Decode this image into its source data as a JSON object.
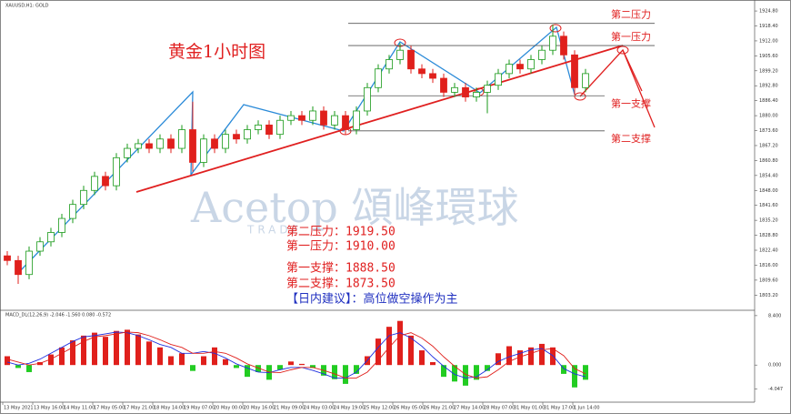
{
  "chart_data": [
    {
      "type": "candlestick",
      "label": "XAUUSD,H1: GOLD",
      "title": "黄金1小时图",
      "open": [
        1820,
        1818,
        1812,
        1822,
        1826,
        1830,
        1836,
        1842,
        1848,
        1854,
        1850,
        1862,
        1866,
        1868,
        1866,
        1870,
        1866,
        1874,
        1860,
        1870,
        1866,
        1872,
        1870,
        1874,
        1876,
        1872,
        1878,
        1880,
        1878,
        1882,
        1876,
        1880,
        1874,
        1882,
        1892,
        1900,
        1904,
        1908,
        1900,
        1898,
        1896,
        1890,
        1892,
        1888,
        1890,
        1893,
        1898,
        1902,
        1900,
        1904,
        1908,
        1914,
        1906,
        1892
      ],
      "high": [
        1822,
        1820,
        1824,
        1828,
        1832,
        1838,
        1844,
        1850,
        1856,
        1856,
        1864,
        1868,
        1870,
        1870,
        1872,
        1872,
        1876,
        1886,
        1872,
        1872,
        1874,
        1874,
        1876,
        1878,
        1878,
        1880,
        1882,
        1882,
        1884,
        1884,
        1882,
        1882,
        1884,
        1894,
        1902,
        1906,
        1911,
        1910,
        1902,
        1900,
        1898,
        1894,
        1894,
        1892,
        1895,
        1900,
        1904,
        1904,
        1906,
        1910,
        1919,
        1916,
        1908,
        1900
      ],
      "low": [
        1816,
        1808,
        1810,
        1820,
        1824,
        1828,
        1834,
        1840,
        1846,
        1848,
        1848,
        1860,
        1864,
        1864,
        1864,
        1864,
        1864,
        1856,
        1858,
        1864,
        1864,
        1868,
        1868,
        1872,
        1870,
        1870,
        1876,
        1876,
        1876,
        1874,
        1874,
        1872,
        1872,
        1880,
        1890,
        1898,
        1902,
        1898,
        1896,
        1894,
        1888,
        1888,
        1886,
        1886,
        1881,
        1891,
        1896,
        1898,
        1898,
        1902,
        1906,
        1904,
        1889,
        1890
      ],
      "close": [
        1818,
        1812,
        1822,
        1826,
        1830,
        1836,
        1842,
        1848,
        1854,
        1850,
        1862,
        1866,
        1868,
        1866,
        1870,
        1866,
        1874,
        1860,
        1870,
        1866,
        1872,
        1870,
        1874,
        1876,
        1872,
        1878,
        1880,
        1878,
        1882,
        1876,
        1880,
        1874,
        1882,
        1892,
        1900,
        1904,
        1908,
        1900,
        1898,
        1896,
        1890,
        1892,
        1888,
        1890,
        1893,
        1898,
        1902,
        1900,
        1904,
        1908,
        1914,
        1906,
        1892,
        1898
      ],
      "up_color": "#1a9a1a",
      "down_color": "#e0201c",
      "ylim": [
        1796.7,
        1929.5
      ],
      "yticks": [
        {
          "value": 1924.8,
          "label": "1924.80"
        },
        {
          "value": 1918.4,
          "label": "1918.40"
        },
        {
          "value": 1912,
          "label": "1912.00"
        },
        {
          "value": 1905.6,
          "label": "1905.60"
        },
        {
          "value": 1899.2,
          "label": "1899.20"
        },
        {
          "value": 1892.8,
          "label": "1892.80"
        },
        {
          "value": 1886.4,
          "label": "1886.40"
        },
        {
          "value": 1880,
          "label": "1880.00"
        },
        {
          "value": 1873.6,
          "label": "1873.60"
        },
        {
          "value": 1867.2,
          "label": "1867.20"
        },
        {
          "value": 1860.8,
          "label": "1860.80"
        },
        {
          "value": 1854.4,
          "label": "1854.40"
        },
        {
          "value": 1848,
          "label": "1848.00"
        },
        {
          "value": 1841.6,
          "label": "1841.60"
        },
        {
          "value": 1835.2,
          "label": "1835.20"
        },
        {
          "value": 1828.8,
          "label": "1828.80"
        },
        {
          "value": 1822.4,
          "label": "1822.40"
        },
        {
          "value": 1816,
          "label": "1816.00"
        },
        {
          "value": 1809.6,
          "label": "1809.60"
        },
        {
          "value": 1803.2,
          "label": "1803.20"
        }
      ],
      "levels": [
        {
          "name": "第二压力",
          "value": 1919.5
        },
        {
          "name": "第一压力",
          "value": 1910
        },
        {
          "name": "第一支撑",
          "value": 1888.5
        },
        {
          "name": "第二支撑",
          "value": 1873.5
        }
      ],
      "notes": [
        "第二压力：1919.50",
        "第一压力：1910.00",
        "第一支撑：1888.50",
        "第二支撑：1873.50",
        "【日内建议】：高位做空操作为主"
      ],
      "watermark": [
        "Acetop 頌峰環球",
        "TRADE"
      ]
    },
    {
      "type": "histogram",
      "label": "MACD_DL(12,26,9) -2.046 -1.560 0.080 -0.572",
      "values": [
        1.5,
        -0.5,
        -1.2,
        0.5,
        1.8,
        3.0,
        4.2,
        5.0,
        5.5,
        4.8,
        5.8,
        6.0,
        5.2,
        4.0,
        3.0,
        1.5,
        2.0,
        -1.0,
        1.5,
        3.0,
        1.0,
        -0.5,
        -2.0,
        -1.2,
        -2.5,
        -0.8,
        0.6,
        0.2,
        -0.5,
        -1.8,
        -2.4,
        -3.2,
        -1.5,
        1.5,
        4.5,
        6.5,
        7.5,
        5.0,
        2.5,
        0.5,
        -2.0,
        -2.8,
        -3.5,
        -2.5,
        -1.0,
        2.0,
        3.2,
        2.5,
        3.0,
        3.6,
        3.0,
        -1.5,
        -3.8,
        -2.5
      ],
      "lines": [
        {
          "color": "#2030e0",
          "values": [
            0.5,
            0,
            0.3,
            1,
            2,
            3,
            4,
            4.8,
            5.0,
            5.3,
            5.6,
            5.5,
            5,
            4.3,
            3.5,
            3,
            2,
            2,
            2.3,
            2,
            1.2,
            0.2,
            -0.5,
            -1.2,
            -1.3,
            -0.8,
            -0.4,
            -0.4,
            -0.9,
            -1.5,
            -2.2,
            -2.2,
            -1.2,
            0.8,
            3,
            5,
            5.5,
            4.6,
            3.2,
            1.4,
            -0.2,
            -1.6,
            -2.2,
            -2,
            -0.8,
            0.6,
            1.4,
            2,
            2.6,
            2.8,
            1.6,
            -0.6,
            -1.5,
            -2.0
          ]
        },
        {
          "color": "#e0201c",
          "values": [
            1,
            0.5,
            0,
            0.3,
            1,
            2,
            3,
            4,
            4.8,
            5.0,
            5.3,
            5.6,
            5.5,
            5,
            4.3,
            3.5,
            3,
            2,
            2,
            2.3,
            2,
            1.2,
            0.2,
            -0.5,
            -1.2,
            -1.3,
            -0.8,
            -0.4,
            -0.4,
            -0.9,
            -1.5,
            -2.2,
            -2.2,
            -1.2,
            0.8,
            3,
            5,
            5.5,
            4.6,
            3.2,
            1.4,
            -0.2,
            -1.6,
            -2.2,
            -2,
            -0.8,
            0.6,
            1.4,
            2,
            2.6,
            2.8,
            1.6,
            -0.6,
            -1.5
          ]
        }
      ],
      "up_color": "#e0201c",
      "down_color": "#22cc22",
      "ylim": [
        -6,
        9
      ],
      "yticks": [
        {
          "value": 8.4,
          "label": "8.400"
        },
        {
          "value": 0,
          "label": "0.000"
        },
        {
          "value": -4.047,
          "label": "-4.047"
        }
      ],
      "xticks": [
        {
          "value": 0,
          "label": "13 May 2021"
        },
        {
          "value": 2.75,
          "label": "13 May 16:00"
        },
        {
          "value": 5.5,
          "label": "14 May 11:00"
        },
        {
          "value": 8.25,
          "label": "17 May 05:00"
        },
        {
          "value": 11,
          "label": "17 May 21:00"
        },
        {
          "value": 13.75,
          "label": "18 May 14:00"
        },
        {
          "value": 16.5,
          "label": "19 May 07:00"
        },
        {
          "value": 19.25,
          "label": "20 May 00:00"
        },
        {
          "value": 22,
          "label": "20 May 16:00"
        },
        {
          "value": 24.75,
          "label": "21 May 09:00"
        },
        {
          "value": 27.5,
          "label": "24 May 03:00"
        },
        {
          "value": 30.25,
          "label": "24 May 19:00"
        },
        {
          "value": 33,
          "label": "25 May 12:00"
        },
        {
          "value": 35.75,
          "label": "26 May 05:00"
        },
        {
          "value": 38.5,
          "label": "26 May 21:00"
        },
        {
          "value": 41.25,
          "label": "27 May 14:00"
        },
        {
          "value": 44,
          "label": "28 May 07:00"
        },
        {
          "value": 46.75,
          "label": "31 May 01:00"
        },
        {
          "value": 49.5,
          "label": "31 May 17:00"
        },
        {
          "value": 52.25,
          "label": "1 Jun 14:00"
        }
      ]
    }
  ]
}
